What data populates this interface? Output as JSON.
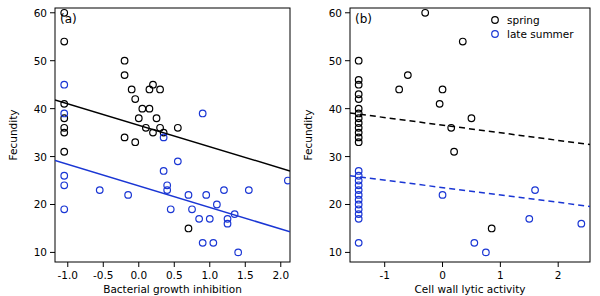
{
  "chart_data": [
    {
      "type": "scatter",
      "title": "(a)",
      "x_label": "Bacterial growth inhibition",
      "y_label": "Fecundity",
      "xlim": [
        -1.18,
        2.13
      ],
      "ylim": [
        8,
        61
      ],
      "xticks": [
        {
          "value": -1,
          "label": "-1.0"
        },
        -0.5,
        {
          "value": 0,
          "label": "0.0"
        },
        0.5,
        {
          "value": 1,
          "label": "1.0"
        },
        1.5,
        {
          "value": 2,
          "label": "2.0"
        }
      ],
      "yticks": [
        10,
        20,
        30,
        40,
        50,
        60
      ],
      "marker": "circle",
      "line_style": "solid",
      "series": [
        {
          "name": "spring",
          "color": "#000000",
          "x": [
            -1.05,
            -1.05,
            -1.05,
            -1.05,
            -1.05,
            -1.05,
            -1.05,
            -0.2,
            -0.2,
            -0.2,
            -0.1,
            -0.05,
            -0.05,
            0.0,
            0.05,
            0.1,
            0.15,
            0.15,
            0.2,
            0.2,
            0.25,
            0.3,
            0.3,
            0.35,
            0.55,
            0.7
          ],
          "values": [
            60,
            54,
            41,
            38,
            36,
            35,
            31,
            50,
            47,
            34,
            44,
            42,
            33,
            38,
            40,
            36,
            44,
            40,
            45,
            35,
            38,
            36,
            44,
            35,
            36,
            15
          ],
          "fit_x": [
            -1.18,
            2.13
          ],
          "fit_y": [
            41.8,
            27
          ]
        },
        {
          "name": "late summer",
          "color": "#1a36d4",
          "x": [
            -1.05,
            -1.05,
            -1.05,
            -1.05,
            -1.05,
            -0.55,
            -0.15,
            0.35,
            0.35,
            0.4,
            0.4,
            0.45,
            0.55,
            0.7,
            0.75,
            0.85,
            0.9,
            0.9,
            0.95,
            1.0,
            1.05,
            1.1,
            1.2,
            1.25,
            1.25,
            1.35,
            1.4,
            1.55,
            2.1
          ],
          "values": [
            45,
            39,
            26,
            24,
            19,
            23,
            22,
            34,
            27,
            24,
            23,
            19,
            29,
            22,
            19,
            17,
            39,
            12,
            22,
            17,
            12,
            20,
            23,
            17,
            16,
            18,
            10,
            23,
            25
          ],
          "fit_x": [
            -1.18,
            2.13
          ],
          "fit_y": [
            29.2,
            14.3
          ]
        }
      ]
    },
    {
      "type": "scatter",
      "title": "(b)",
      "x_label": "Cell wall lytic activity",
      "y_label": "Fecundity",
      "xlim": [
        -1.6,
        2.55
      ],
      "ylim": [
        8,
        61
      ],
      "xticks": [
        -1,
        0,
        1,
        2
      ],
      "yticks": [
        10,
        20,
        30,
        40,
        50,
        60
      ],
      "marker": "circle",
      "line_style": "dashed",
      "legend": "top-right",
      "series": [
        {
          "name": "spring",
          "color": "#000000",
          "x": [
            -1.45,
            -1.45,
            -1.45,
            -1.45,
            -1.45,
            -1.45,
            -1.45,
            -1.45,
            -1.45,
            -1.45,
            -1.45,
            -1.45,
            -1.45,
            -0.75,
            -0.6,
            -0.3,
            -0.05,
            0.0,
            0.15,
            0.2,
            0.35,
            0.5,
            0.85
          ],
          "values": [
            50,
            46,
            45,
            43,
            42,
            40,
            39,
            38,
            37,
            36,
            35,
            34,
            33,
            44,
            47,
            60,
            41,
            44,
            36,
            31,
            54,
            38,
            15
          ],
          "fit_x": [
            -1.6,
            2.55
          ],
          "fit_y": [
            39.1,
            32.5
          ]
        },
        {
          "name": "late summer",
          "color": "#1a36d4",
          "x": [
            -1.45,
            -1.45,
            -1.45,
            -1.45,
            -1.45,
            -1.45,
            -1.45,
            -1.45,
            -1.45,
            -1.45,
            -1.45,
            -1.45,
            0.0,
            0.55,
            0.75,
            1.5,
            1.6,
            2.4
          ],
          "values": [
            27,
            26,
            25,
            24,
            23,
            22,
            21,
            20,
            19,
            18,
            17,
            12,
            22,
            12,
            10,
            17,
            23,
            16
          ],
          "fit_x": [
            -1.6,
            2.55
          ],
          "fit_y": [
            26,
            19.6
          ]
        }
      ]
    }
  ]
}
